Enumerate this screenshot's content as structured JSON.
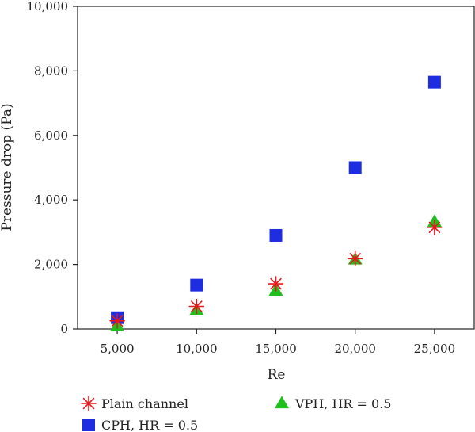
{
  "chart_data": {
    "type": "scatter",
    "title": "",
    "xlabel": "Re",
    "ylabel": "Pressure drop (Pa)",
    "xlim": [
      2500,
      27500
    ],
    "ylim": [
      0,
      10000
    ],
    "xticks": [
      5000,
      10000,
      15000,
      20000,
      25000
    ],
    "xtick_labels": [
      "5,000",
      "10,000",
      "15,000",
      "20,000",
      "25,000"
    ],
    "yticks": [
      0,
      2000,
      4000,
      6000,
      8000,
      10000
    ],
    "ytick_labels": [
      "0",
      "2,000",
      "4,000",
      "6,000",
      "8,000",
      "10,000"
    ],
    "grid": false,
    "legend_position": "bottom",
    "series": [
      {
        "name": "Plain channel",
        "marker": "asterisk",
        "color": "#e8161b",
        "x": [
          5000,
          10000,
          15000,
          20000,
          25000
        ],
        "y": [
          250,
          700,
          1400,
          2180,
          3150
        ]
      },
      {
        "name": "CPH, HR = 0.5",
        "marker": "square",
        "color": "#1f2de0",
        "x": [
          5000,
          10000,
          15000,
          20000,
          25000
        ],
        "y": [
          350,
          1360,
          2900,
          5000,
          7650
        ]
      },
      {
        "name": "VPH, HR = 0.5",
        "marker": "triangle",
        "color": "#1ec01e",
        "x": [
          5000,
          10000,
          15000,
          20000,
          25000
        ],
        "y": [
          80,
          580,
          1180,
          2150,
          3320
        ]
      }
    ]
  }
}
